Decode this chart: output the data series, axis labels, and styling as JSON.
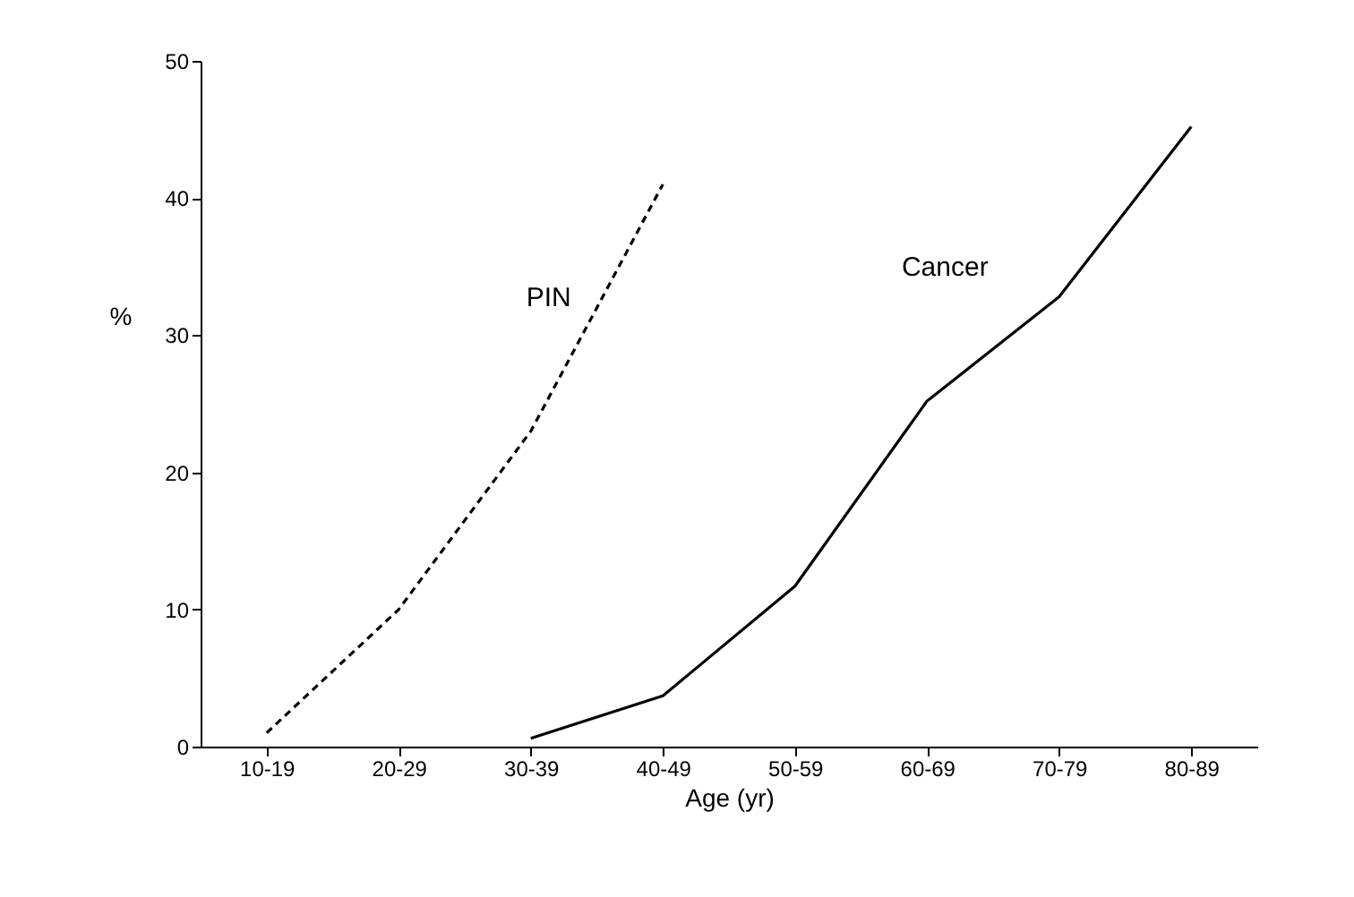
{
  "chart_data": {
    "type": "line",
    "xlabel": "Age (yr)",
    "ylabel": "%",
    "categories": [
      "10-19",
      "20-29",
      "30-39",
      "40-49",
      "50-59",
      "60-69",
      "70-79",
      "80-89"
    ],
    "series": [
      {
        "name": "PIN",
        "color": "#000000",
        "line_style": "dashed",
        "values": [
          1,
          10,
          23,
          41,
          null,
          null,
          null,
          null
        ]
      },
      {
        "name": "Cancer",
        "color": "#000000",
        "line_style": "solid",
        "values": [
          null,
          null,
          0.6,
          3.7,
          11.7,
          25.2,
          32.8,
          45.2
        ]
      }
    ],
    "ylim": [
      0,
      50
    ],
    "yticks": [
      0,
      10,
      20,
      30,
      40,
      50
    ],
    "marker": "none"
  }
}
